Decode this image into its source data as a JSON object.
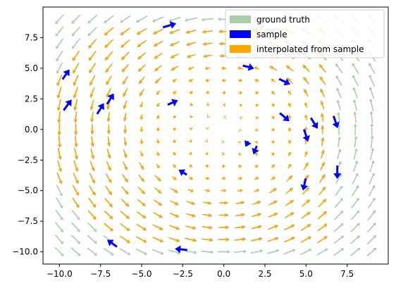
{
  "chart_data": {
    "type": "quiver",
    "title": "",
    "xlabel": "",
    "ylabel": "",
    "xlim": [
      -11,
      10
    ],
    "ylim": [
      -11,
      10
    ],
    "x_ticks": [
      -10,
      -7.5,
      -5,
      -2.5,
      0,
      2.5,
      5,
      7.5
    ],
    "y_ticks": [
      -10,
      -7.5,
      -5,
      -2.5,
      0,
      2.5,
      5,
      7.5
    ],
    "x_tick_labels": [
      "−10.0",
      "−7.5",
      "−5.0",
      "−2.5",
      "0.0",
      "2.5",
      "5.0",
      "7.5"
    ],
    "y_tick_labels": [
      "−10.0",
      "−7.5",
      "−5.0",
      "−2.5",
      "0.0",
      "2.5",
      "5.0",
      "7.5"
    ],
    "grid": false,
    "legend_position": "top-right",
    "field": "rotation",
    "grid_range": [
      -10,
      9
    ],
    "grid_count": 20,
    "series": [
      {
        "name": "ground truth",
        "color": "#a8cfa8"
      },
      {
        "name": "sample",
        "color": "#0000ff",
        "points": [
          {
            "x": -3.3,
            "y": 8.5,
            "u": 1.0,
            "v": 0.3
          },
          {
            "x": -9.6,
            "y": 4.5,
            "u": 0.5,
            "v": 0.7
          },
          {
            "x": -9.5,
            "y": 2.0,
            "u": 0.6,
            "v": 0.8
          },
          {
            "x": -7.5,
            "y": 1.7,
            "u": 0.5,
            "v": 0.8
          },
          {
            "x": -6.9,
            "y": 2.5,
            "u": 0.5,
            "v": 0.8
          },
          {
            "x": -3.1,
            "y": 2.2,
            "u": 0.7,
            "v": 0.3
          },
          {
            "x": 1.5,
            "y": 5.1,
            "u": 0.8,
            "v": -0.2
          },
          {
            "x": 3.7,
            "y": 3.9,
            "u": 0.8,
            "v": -0.4
          },
          {
            "x": 3.7,
            "y": 1.0,
            "u": 0.7,
            "v": -0.6
          },
          {
            "x": 5.5,
            "y": 0.5,
            "u": 0.5,
            "v": -0.8
          },
          {
            "x": 6.8,
            "y": 0.6,
            "u": 0.3,
            "v": -0.9
          },
          {
            "x": 5.0,
            "y": -0.5,
            "u": 0.3,
            "v": -0.9
          },
          {
            "x": 6.9,
            "y": -3.5,
            "u": 0.0,
            "v": -1.0
          },
          {
            "x": 4.9,
            "y": -4.5,
            "u": -0.2,
            "v": -0.9
          },
          {
            "x": 1.9,
            "y": -1.7,
            "u": -0.2,
            "v": -0.5
          },
          {
            "x": 1.4,
            "y": -1.2,
            "u": -0.1,
            "v": -0.2
          },
          {
            "x": -2.5,
            "y": -3.5,
            "u": -0.5,
            "v": 0.3
          },
          {
            "x": -6.8,
            "y": -9.3,
            "u": -0.7,
            "v": 0.5
          },
          {
            "x": -2.6,
            "y": -9.8,
            "u": -0.9,
            "v": 0.1
          }
        ]
      },
      {
        "name": "interpolated from sample",
        "color": "#ffa500"
      }
    ]
  }
}
